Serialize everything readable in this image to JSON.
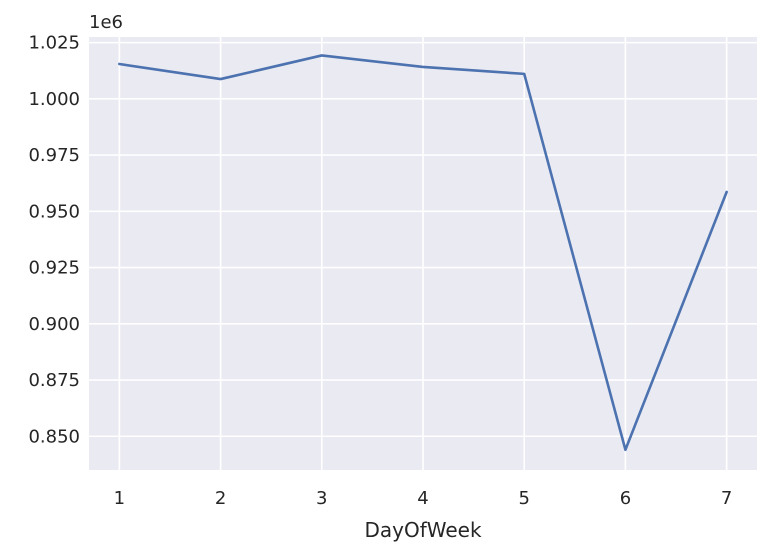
{
  "chart_data": {
    "type": "line",
    "title": "",
    "xlabel": "DayOfWeek",
    "ylabel": "",
    "y_offset_label": "1e6",
    "x": [
      1,
      2,
      3,
      4,
      5,
      6,
      7
    ],
    "x_ticks": [
      "1",
      "2",
      "3",
      "4",
      "5",
      "6",
      "7"
    ],
    "y_ticks": [
      0.85,
      0.875,
      0.9,
      0.925,
      0.95,
      0.975,
      1.0,
      1.025
    ],
    "y_tick_labels": [
      "0.850",
      "0.875",
      "0.900",
      "0.925",
      "0.950",
      "0.975",
      "1.000",
      "1.025"
    ],
    "series": [
      {
        "values": [
          1015500,
          1008800,
          1019300,
          1014200,
          1011100,
          844000,
          958600
        ],
        "color": "#4c72b0"
      }
    ],
    "xlim": [
      0.7,
      7.3
    ],
    "ylim": [
      835000,
      1027500
    ],
    "y_scale": 1000000,
    "grid": true,
    "background": "#eaeaf2",
    "grid_color": "#ffffff"
  }
}
